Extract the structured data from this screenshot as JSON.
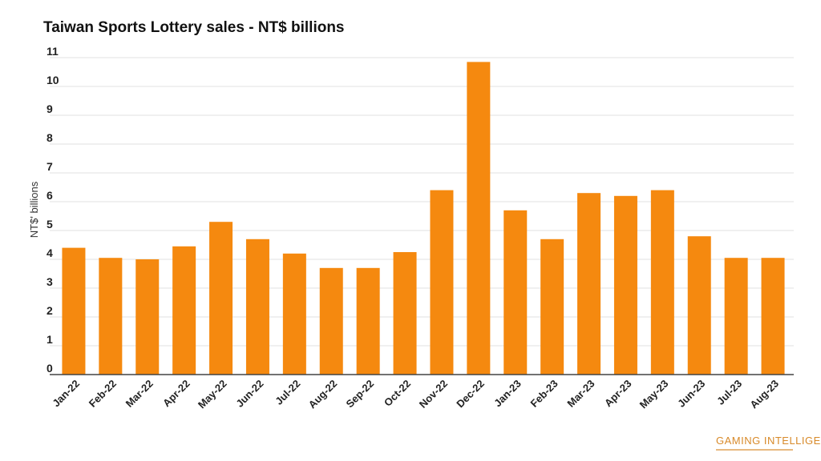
{
  "chart_data": {
    "type": "bar",
    "title": "Taiwan Sports Lottery sales - NT$ billions",
    "ylabel": "NT$' billions",
    "xlabel": "",
    "ylim": [
      0,
      11
    ],
    "yticks": [
      0,
      1,
      2,
      3,
      4,
      5,
      6,
      7,
      8,
      9,
      10,
      11
    ],
    "grid": true,
    "bar_color": "#f5890f",
    "categories": [
      "Jan-22",
      "Feb-22",
      "Mar-22",
      "Apr-22",
      "May-22",
      "Jun-22",
      "Jul-22",
      "Aug-22",
      "Sep-22",
      "Oct-22",
      "Nov-22",
      "Dec-22",
      "Jan-23",
      "Feb-23",
      "Mar-23",
      "Apr-23",
      "May-23",
      "Jun-23",
      "Jul-23",
      "Aug-23"
    ],
    "values": [
      4.4,
      4.05,
      4.0,
      4.45,
      5.3,
      4.7,
      4.2,
      3.7,
      3.7,
      4.25,
      6.4,
      10.85,
      5.7,
      4.7,
      6.3,
      6.2,
      6.4,
      4.8,
      4.05,
      4.05
    ]
  },
  "logo": {
    "name": "GAMING INTELLIGENCE",
    "color": "#d88a2a"
  }
}
